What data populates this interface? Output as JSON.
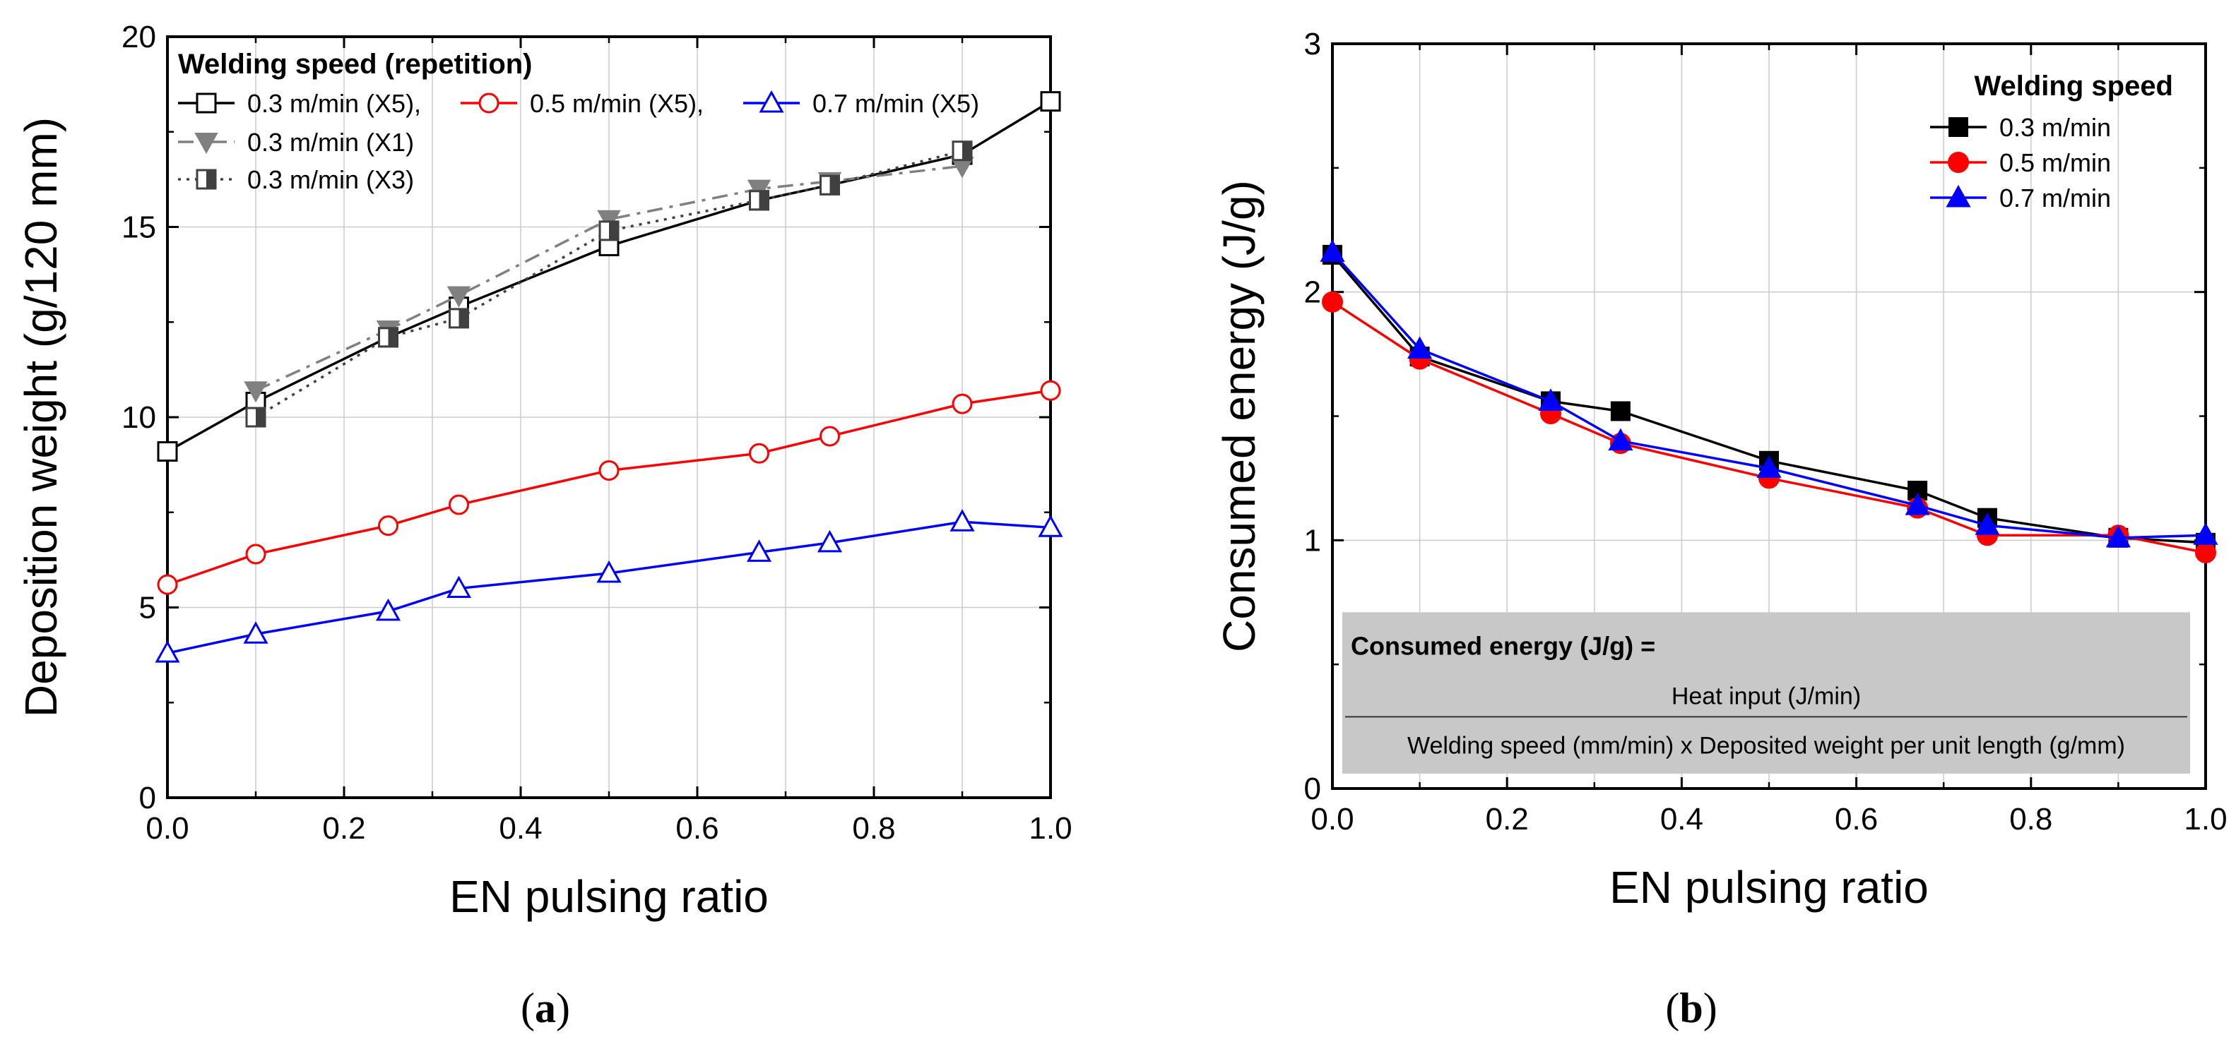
{
  "chart_data": [
    {
      "type": "line",
      "panel_label": "a",
      "title": "",
      "xlabel": "EN pulsing ratio",
      "ylabel": "Deposition weight (g/120 mm)",
      "xlim": [
        0.0,
        1.0
      ],
      "ylim": [
        0,
        20
      ],
      "xticks": [
        "0.0",
        "0.2",
        "0.4",
        "0.6",
        "0.8",
        "1.0"
      ],
      "yticks": [
        "0",
        "5",
        "10",
        "15",
        "20"
      ],
      "grid": true,
      "legend_title": "Welding speed (repetition)",
      "legend_position": "top-left",
      "series": [
        {
          "name": "0.3 m/min (X5),",
          "color": "#000000",
          "marker": "square-open",
          "line": "solid",
          "x": [
            0,
            0.1,
            0.25,
            0.33,
            0.5,
            0.67,
            0.75,
            0.9,
            1.0
          ],
          "y": [
            9.1,
            10.4,
            12.1,
            12.9,
            14.5,
            15.7,
            16.1,
            16.9,
            18.3
          ]
        },
        {
          "name": "0.5 m/min (X5),",
          "color": "#ff0000",
          "marker": "circle-open",
          "line": "solid",
          "x": [
            0,
            0.1,
            0.25,
            0.33,
            0.5,
            0.67,
            0.75,
            0.9,
            1.0
          ],
          "y": [
            5.6,
            6.4,
            7.15,
            7.7,
            8.6,
            9.05,
            9.5,
            10.35,
            10.7
          ]
        },
        {
          "name": "0.7 m/min (X5)",
          "color": "#0000ff",
          "marker": "triangle-open",
          "line": "solid",
          "x": [
            0,
            0.1,
            0.25,
            0.33,
            0.5,
            0.67,
            0.75,
            0.9,
            1.0
          ],
          "y": [
            3.8,
            4.3,
            4.9,
            5.5,
            5.9,
            6.45,
            6.7,
            7.25,
            7.1
          ]
        },
        {
          "name": "0.3 m/min (X1)",
          "color": "#808080",
          "marker": "triangle-down-filled",
          "line": "dashdot",
          "x": [
            0.1,
            0.25,
            0.33,
            0.5,
            0.67,
            0.75,
            0.9
          ],
          "y": [
            10.7,
            12.3,
            13.2,
            15.2,
            16.0,
            16.2,
            16.6
          ]
        },
        {
          "name": "0.3 m/min (X3)",
          "color": "#404040",
          "marker": "square-half",
          "line": "dotted",
          "x": [
            0.1,
            0.25,
            0.33,
            0.5,
            0.67,
            0.75,
            0.9
          ],
          "y": [
            10.0,
            12.1,
            12.6,
            14.9,
            15.7,
            16.1,
            17.0
          ]
        }
      ]
    },
    {
      "type": "line",
      "panel_label": "b",
      "title": "",
      "xlabel": "EN pulsing ratio",
      "ylabel": "Consumed energy (J/g)",
      "xlim": [
        0.0,
        1.0
      ],
      "ylim": [
        0,
        3
      ],
      "xticks": [
        "0.0",
        "0.2",
        "0.4",
        "0.6",
        "0.8",
        "1.0"
      ],
      "yticks": [
        "0",
        "1",
        "2",
        "3"
      ],
      "grid": true,
      "legend_title": "Welding speed",
      "legend_position": "top-right",
      "formula": {
        "lhs": "Consumed energy (J/g) =",
        "numerator": "Heat input (J/min)",
        "denominator": "Welding speed (mm/min) x Deposited weight per unit length (g/mm)"
      },
      "series": [
        {
          "name": "0.3 m/min",
          "color": "#000000",
          "marker": "square-filled",
          "line": "solid",
          "x": [
            0,
            0.1,
            0.25,
            0.33,
            0.5,
            0.67,
            0.75,
            0.9,
            1.0
          ],
          "y": [
            2.15,
            1.74,
            1.56,
            1.52,
            1.32,
            1.2,
            1.09,
            1.01,
            0.99
          ]
        },
        {
          "name": "0.5 m/min",
          "color": "#ff0000",
          "marker": "circle-filled",
          "line": "solid",
          "x": [
            0,
            0.1,
            0.25,
            0.33,
            0.5,
            0.67,
            0.75,
            0.9,
            1.0
          ],
          "y": [
            1.96,
            1.73,
            1.51,
            1.39,
            1.25,
            1.13,
            1.02,
            1.02,
            0.95
          ]
        },
        {
          "name": "0.7 m/min",
          "color": "#0000ff",
          "marker": "triangle-filled",
          "line": "solid",
          "x": [
            0,
            0.1,
            0.25,
            0.33,
            0.5,
            0.67,
            0.75,
            0.9,
            1.0
          ],
          "y": [
            2.16,
            1.77,
            1.56,
            1.4,
            1.29,
            1.14,
            1.06,
            1.01,
            1.02
          ]
        }
      ]
    }
  ]
}
